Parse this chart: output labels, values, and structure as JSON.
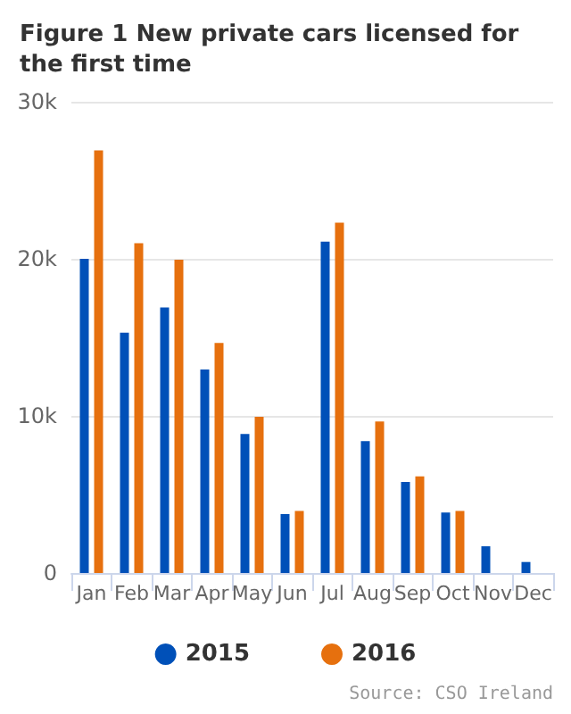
{
  "chart_data": {
    "type": "bar",
    "title": "Figure 1 New private cars licensed for the first time",
    "categories": [
      "Jan",
      "Feb",
      "Mar",
      "Apr",
      "May",
      "Jun",
      "Jul",
      "Aug",
      "Sep",
      "Oct",
      "Nov",
      "Dec"
    ],
    "series": [
      {
        "name": "2015",
        "color": "#0050b8",
        "values": [
          20000,
          15300,
          16900,
          12950,
          8850,
          3750,
          21100,
          8400,
          5800,
          3850,
          1700,
          700
        ]
      },
      {
        "name": "2016",
        "color": "#e6700e",
        "values": [
          26900,
          21000,
          19950,
          14650,
          9950,
          3950,
          22300,
          9650,
          6150,
          3950,
          null,
          null
        ]
      }
    ],
    "ylim": [
      0,
      30000
    ],
    "yticks": [
      {
        "value": 0,
        "label": "0"
      },
      {
        "value": 10000,
        "label": "10k"
      },
      {
        "value": 20000,
        "label": "20k"
      },
      {
        "value": 30000,
        "label": "30k"
      }
    ],
    "grid": "y",
    "legend": "bottom",
    "annotations": [
      "Source: CSO Ireland"
    ]
  }
}
